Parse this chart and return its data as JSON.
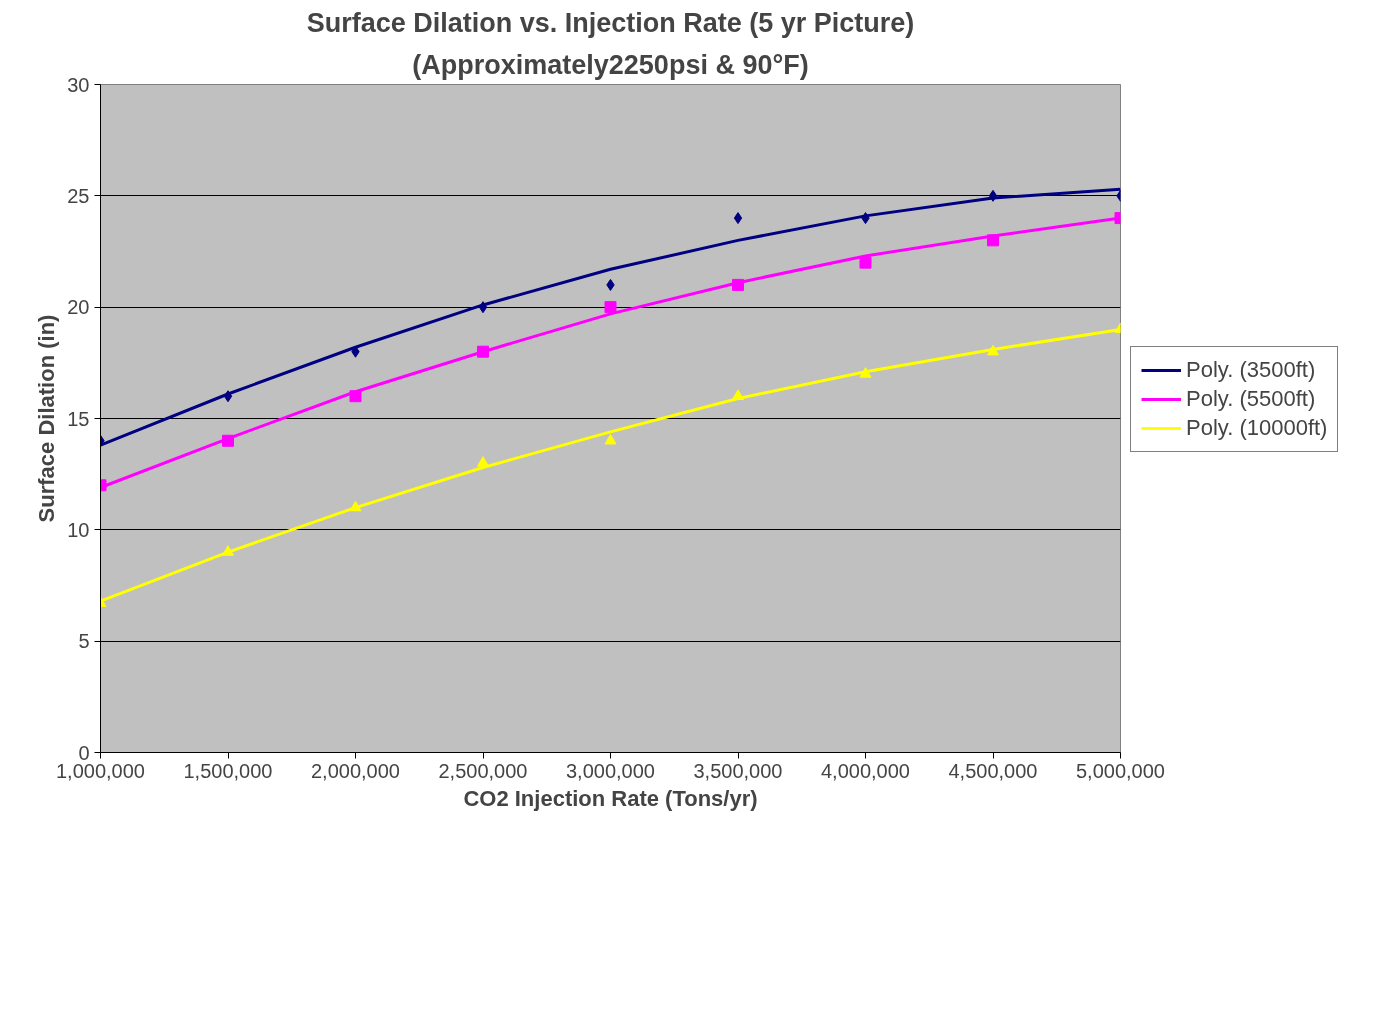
{
  "chart_data": {
    "type": "scatter",
    "title": "Surface Dilation vs. Injection Rate (5 yr Picture)",
    "subtitle": "(Approximately2250psi & 90°F)",
    "xlabel": "CO2 Injection Rate (Tons/yr)",
    "ylabel": "Surface Dilation (in)",
    "x": [
      1000000,
      1500000,
      2000000,
      2500000,
      3000000,
      3500000,
      4000000,
      4500000,
      5000000
    ],
    "series": [
      {
        "marker": "diamond",
        "color": "#000080",
        "values": [
          14,
          16,
          18,
          20,
          21,
          24,
          24,
          25,
          25
        ]
      },
      {
        "marker": "square",
        "color": "#ff00ff",
        "values": [
          12,
          14,
          16,
          18,
          20,
          21,
          22,
          23,
          24
        ]
      },
      {
        "marker": "triangle",
        "color": "#ffff00",
        "values": [
          6.7,
          9,
          11,
          13,
          14,
          16,
          17,
          18,
          19
        ]
      },
      {
        "type": "line",
        "name": "Poly. (3500ft)",
        "color": "#000080",
        "values": [
          13.8,
          16.1,
          18.2,
          20.1,
          21.7,
          23.0,
          24.1,
          24.9,
          25.3
        ]
      },
      {
        "type": "line",
        "name": "Poly. (5500ft)",
        "color": "#ff00ff",
        "values": [
          11.9,
          14.1,
          16.2,
          18.0,
          19.7,
          21.1,
          22.3,
          23.2,
          24.0
        ]
      },
      {
        "type": "line",
        "name": "Poly. (10000ft)",
        "color": "#ffff00",
        "values": [
          6.8,
          9.0,
          11.0,
          12.8,
          14.4,
          15.9,
          17.1,
          18.1,
          19.0
        ]
      }
    ],
    "xlim": [
      1000000,
      5000000
    ],
    "xticks": [
      {
        "value": 1000000,
        "label": "1,000,000"
      },
      {
        "value": 1500000,
        "label": "1,500,000"
      },
      {
        "value": 2000000,
        "label": "2,000,000"
      },
      {
        "value": 2500000,
        "label": "2,500,000"
      },
      {
        "value": 3000000,
        "label": "3,000,000"
      },
      {
        "value": 3500000,
        "label": "3,500,000"
      },
      {
        "value": 4000000,
        "label": "4,000,000"
      },
      {
        "value": 4500000,
        "label": "4,500,000"
      },
      {
        "value": 5000000,
        "label": "5,000,000"
      }
    ],
    "ylim": [
      0,
      30
    ],
    "yticks": [
      0,
      5,
      10,
      15,
      20,
      25,
      30
    ],
    "grid": "y",
    "legend": "right",
    "line_style": "solid"
  }
}
